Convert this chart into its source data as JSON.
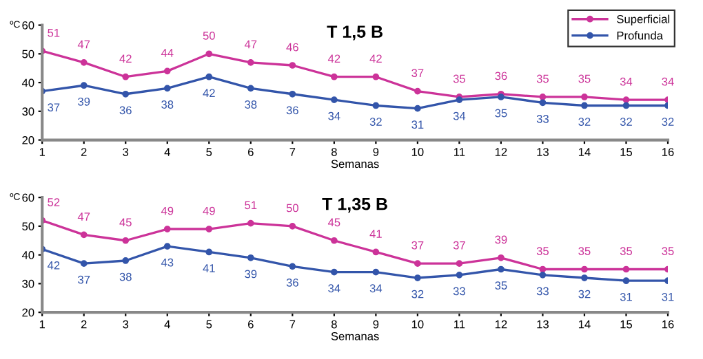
{
  "chart_data": [
    {
      "type": "line",
      "title": "T 1,5 B",
      "xlabel": "Semanas",
      "ylabel": "ºC",
      "x": [
        1,
        2,
        3,
        4,
        5,
        6,
        7,
        8,
        9,
        10,
        11,
        12,
        13,
        14,
        15,
        16
      ],
      "xlim": [
        1,
        16
      ],
      "xticks": [
        1,
        2,
        3,
        4,
        5,
        6,
        7,
        8,
        9,
        10,
        11,
        12,
        13,
        14,
        15,
        16
      ],
      "ylim": [
        20,
        60
      ],
      "yticks": [
        20,
        30,
        40,
        50,
        60
      ],
      "marker": "circle",
      "data_labels": true,
      "legend": "top right",
      "grid": false,
      "series": [
        {
          "name": "Superficial",
          "color": "#cc3399",
          "values": [
            51,
            47,
            42,
            44,
            50,
            47,
            46,
            42,
            42,
            37,
            35,
            36,
            35,
            35,
            34,
            34
          ]
        },
        {
          "name": "Profunda",
          "color": "#3355aa",
          "values": [
            37,
            39,
            36,
            38,
            42,
            38,
            36,
            34,
            32,
            31,
            34,
            35,
            33,
            32,
            32,
            32
          ]
        }
      ]
    },
    {
      "type": "line",
      "title": "T 1,35 B",
      "xlabel": "Semanas",
      "ylabel": "ºC",
      "x": [
        1,
        2,
        3,
        4,
        5,
        6,
        7,
        8,
        9,
        10,
        11,
        12,
        13,
        14,
        15,
        16
      ],
      "xlim": [
        1,
        16
      ],
      "xticks": [
        1,
        2,
        3,
        4,
        5,
        6,
        7,
        8,
        9,
        10,
        11,
        12,
        13,
        14,
        15,
        16
      ],
      "ylim": [
        20,
        60
      ],
      "yticks": [
        20,
        30,
        40,
        50,
        60
      ],
      "marker": "circle",
      "data_labels": true,
      "grid": false,
      "series": [
        {
          "color": "#cc3399",
          "values": [
            52,
            47,
            45,
            49,
            49,
            51,
            50,
            45,
            41,
            37,
            37,
            39,
            35,
            35,
            35,
            35
          ]
        },
        {
          "color": "#3355aa",
          "values": [
            42,
            37,
            38,
            43,
            41,
            39,
            36,
            34,
            34,
            32,
            33,
            35,
            33,
            32,
            31,
            31
          ]
        }
      ]
    }
  ]
}
